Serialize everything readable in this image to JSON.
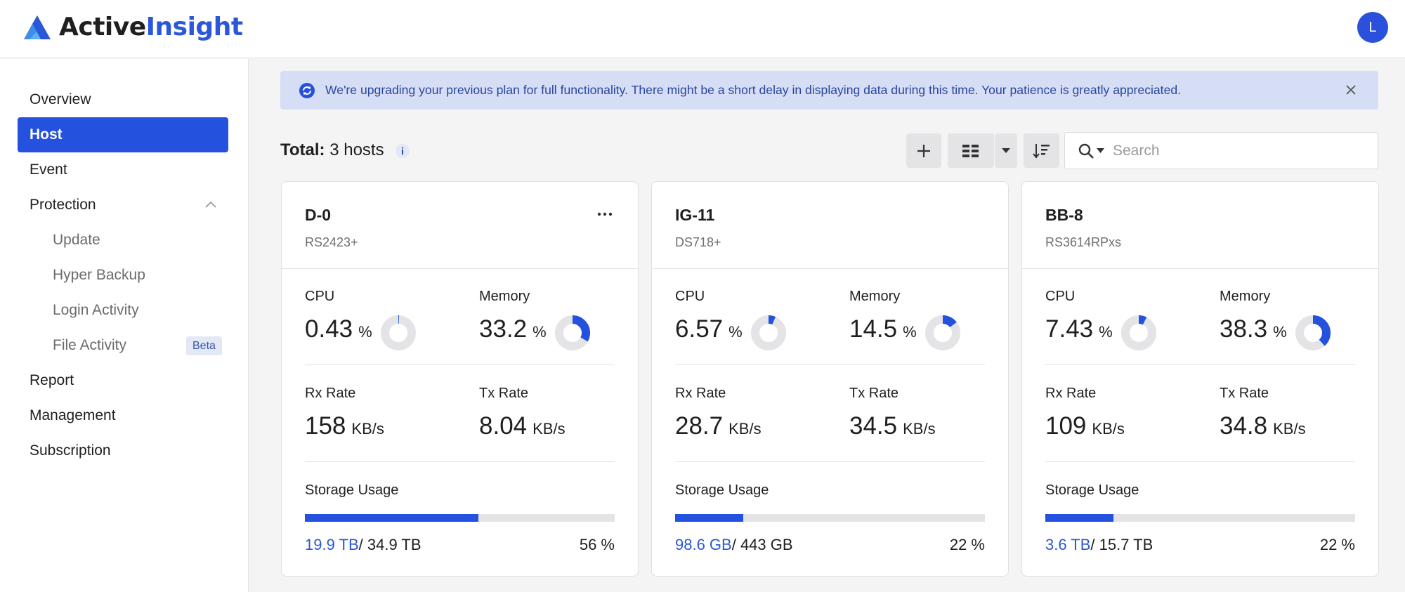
{
  "app": {
    "brand_part1": "Active",
    "brand_part2": "Insight",
    "avatar_initial": "L",
    "accent_color": "#2451dd"
  },
  "sidebar": {
    "items": [
      {
        "label": "Overview",
        "active": false
      },
      {
        "label": "Host",
        "active": true
      },
      {
        "label": "Event",
        "active": false
      },
      {
        "label": "Protection",
        "active": false,
        "expanded": true
      },
      {
        "label": "Update",
        "sub": true
      },
      {
        "label": "Hyper Backup",
        "sub": true
      },
      {
        "label": "Login Activity",
        "sub": true
      },
      {
        "label": "File Activity",
        "sub": true,
        "badge": "Beta"
      },
      {
        "label": "Report",
        "active": false
      },
      {
        "label": "Management",
        "active": false
      },
      {
        "label": "Subscription",
        "active": false
      }
    ]
  },
  "banner": {
    "icon": "sync-icon",
    "text": "We're upgrading your previous plan for full functionality. There might be a short delay in displaying data during this time. Your patience is greatly appreciated."
  },
  "toolbar": {
    "total_label": "Total:",
    "total_value": "3 hosts",
    "search_placeholder": "Search"
  },
  "cards": [
    {
      "name": "D-0",
      "model": "RS2423+",
      "cpu_label": "CPU",
      "cpu": "0.43",
      "cpu_unit": "%",
      "cpu_fraction": 0.0043,
      "mem_label": "Memory",
      "mem": "33.2",
      "mem_unit": "%",
      "mem_fraction": 0.332,
      "rx_label": "Rx Rate",
      "rx": "158",
      "rx_unit": "KB/s",
      "tx_label": "Tx Rate",
      "tx": "8.04",
      "tx_unit": "KB/s",
      "storage_label": "Storage Usage",
      "used": "19.9 TB",
      "total": "/ 34.9 TB",
      "pct": "56 %",
      "fraction": 0.56
    },
    {
      "name": "IG-11",
      "model": "DS718+",
      "cpu_label": "CPU",
      "cpu": "6.57",
      "cpu_unit": "%",
      "cpu_fraction": 0.0657,
      "mem_label": "Memory",
      "mem": "14.5",
      "mem_unit": "%",
      "mem_fraction": 0.145,
      "rx_label": "Rx Rate",
      "rx": "28.7",
      "rx_unit": "KB/s",
      "tx_label": "Tx Rate",
      "tx": "34.5",
      "tx_unit": "KB/s",
      "storage_label": "Storage Usage",
      "used": "98.6 GB",
      "total": "/ 443 GB",
      "pct": "22 %",
      "fraction": 0.22
    },
    {
      "name": "BB-8",
      "model": "RS3614RPxs",
      "cpu_label": "CPU",
      "cpu": "7.43",
      "cpu_unit": "%",
      "cpu_fraction": 0.0743,
      "mem_label": "Memory",
      "mem": "38.3",
      "mem_unit": "%",
      "mem_fraction": 0.383,
      "rx_label": "Rx Rate",
      "rx": "109",
      "rx_unit": "KB/s",
      "tx_label": "Tx Rate",
      "tx": "34.8",
      "tx_unit": "KB/s",
      "storage_label": "Storage Usage",
      "used": "3.6 TB",
      "total": "/ 15.7 TB",
      "pct": "22 %",
      "fraction": 0.22
    }
  ]
}
